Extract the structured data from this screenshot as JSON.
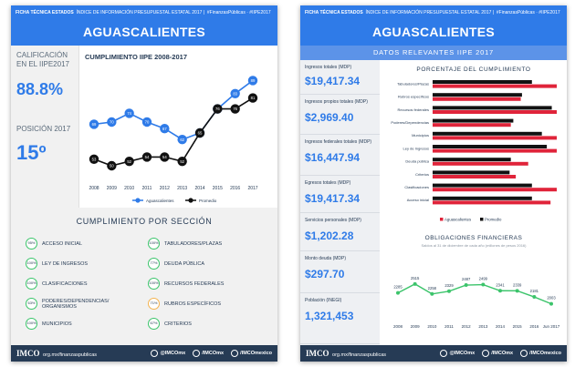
{
  "colors": {
    "blue": "#2f7be8",
    "dark": "#263b55",
    "black": "#111111",
    "red": "#e0243a",
    "green": "#3cc46b",
    "orange": "#f4b350"
  },
  "header": {
    "tag": "FICHA TÉCNICA ESTADOS",
    "subtitle": "ÍNDICE DE INFORMACIÓN PRESUPUESTAL ESTATAL 2017",
    "hashtag": "#FinanzasPúblicas · #IIPE2017",
    "state": "AGUASCALIENTES"
  },
  "page1": {
    "calif_label": "CALIFICACIÓN EN EL IIPE2017",
    "score": "88.8%",
    "position_label": "POSICIÓN 2017",
    "position": "15º",
    "chart_title": "CUMPLIMIENTO IIPE 2008-2017",
    "section_title": "CUMPLIMIENTO POR SECCIÓN",
    "items": [
      {
        "badge": "95%",
        "label": "ACCESO INICIAL",
        "color": "green"
      },
      {
        "badge": "100%",
        "label": "TABULADORES/PLAZAS",
        "color": "green"
      },
      {
        "badge": "100%",
        "label": "LEY DE INGRESOS",
        "color": "green"
      },
      {
        "badge": "77%",
        "label": "DEUDA PÚBLICA",
        "color": "green"
      },
      {
        "badge": "100%",
        "label": "CLASIFICACIONES",
        "color": "green"
      },
      {
        "badge": "100%",
        "label": "RECURSOS FEDERALES",
        "color": "green"
      },
      {
        "badge": "63%",
        "label": "PODERES/DEPENDENCIAS/ ORGANISMOS",
        "color": "green"
      },
      {
        "badge": "71%",
        "label": "RUBROS ESPECÍFICOS",
        "color": "orange"
      },
      {
        "badge": "100%",
        "label": "MUNICIPIOS",
        "color": "green"
      },
      {
        "badge": "67%",
        "label": "CRITERIOS",
        "color": "green"
      }
    ]
  },
  "page2": {
    "subbar": "DATOS RELEVANTES IIPE 2017",
    "stats": [
      {
        "label": "Ingresos totales (MDP)",
        "value": "$19,417.34"
      },
      {
        "label": "Ingresos propios totales (MDP)",
        "value": "$2,969.40"
      },
      {
        "label": "Ingresos federales totales (MDP)",
        "value": "$16,447.94"
      },
      {
        "label": "Egresos totales (MDP)",
        "value": "$19,417.34"
      },
      {
        "label": "Servicios personales (MDP)",
        "value": "$1,202.28"
      },
      {
        "label": "Monto deuda (MDP)",
        "value": "$297.70"
      },
      {
        "label": "Población (INEGI)",
        "value": "1,321,453"
      }
    ],
    "pct_title": "PORCENTAJE DEL CUMPLIMIENTO",
    "fin_title": "OBLIGACIONES FINANCIERAS",
    "fin_subtitle": "Saldos al 31 de diciembre de cada año (millones de pesos 2016)"
  },
  "footer": {
    "brand": "IMCO",
    "url": "org.mx/finanzaspublicas",
    "twitter": "@IMCOmx",
    "facebook": "/IMCOmx",
    "instagram": "/IMCOmexico"
  },
  "chart_data": [
    {
      "type": "line",
      "title": "CUMPLIMIENTO IIPE 2008-2017",
      "x": [
        "2008",
        "2009",
        "2010",
        "2011",
        "2012",
        "2013",
        "2014",
        "2015",
        "2016",
        "2017"
      ],
      "ylim": [
        45,
        95
      ],
      "series": [
        {
          "name": "Aguascalientes",
          "color": "#2f7be8",
          "values": [
            69,
            70,
            74,
            70,
            67,
            62,
            65,
            76,
            83,
            89
          ]
        },
        {
          "name": "Promedio",
          "color": "#111111",
          "values": [
            53,
            50,
            52,
            54,
            54,
            52,
            65,
            76,
            76,
            81
          ]
        }
      ],
      "legend": "bottom"
    },
    {
      "type": "bar",
      "title": "PORCENTAJE DEL CUMPLIMIENTO",
      "orientation": "horizontal",
      "categories": [
        "Tabuladores/Plazas",
        "Rubros específicos",
        "Recursos federales",
        "Poderes/Dependencias",
        "Municipios",
        "Ley de Ingresos",
        "Deuda pública",
        "Criterios",
        "Clasificaciones",
        "Acceso inicial"
      ],
      "xlim": [
        0,
        100
      ],
      "series": [
        {
          "name": "Aguascalientes",
          "color": "#e0243a",
          "values": [
            100,
            71,
            100,
            63,
            100,
            100,
            77,
            67,
            100,
            95
          ]
        },
        {
          "name": "Promedio",
          "color": "#111111",
          "values": [
            80,
            72,
            96,
            65,
            88,
            92,
            63,
            62,
            80,
            80
          ]
        }
      ],
      "legend": "bottom"
    },
    {
      "type": "line",
      "title": "OBLIGACIONES FINANCIERAS",
      "x": [
        "2008",
        "2009",
        "2010",
        "2011",
        "2012",
        "2013",
        "2014",
        "2015",
        "2016",
        "Jun 2017"
      ],
      "ylim": [
        1900,
        2700
      ],
      "series": [
        {
          "name": "",
          "color": "#3cc46b",
          "values": [
            2285,
            2515,
            2258,
            2329,
            2487,
            2499,
            2341,
            2339,
            2181,
            2003
          ]
        }
      ]
    }
  ]
}
